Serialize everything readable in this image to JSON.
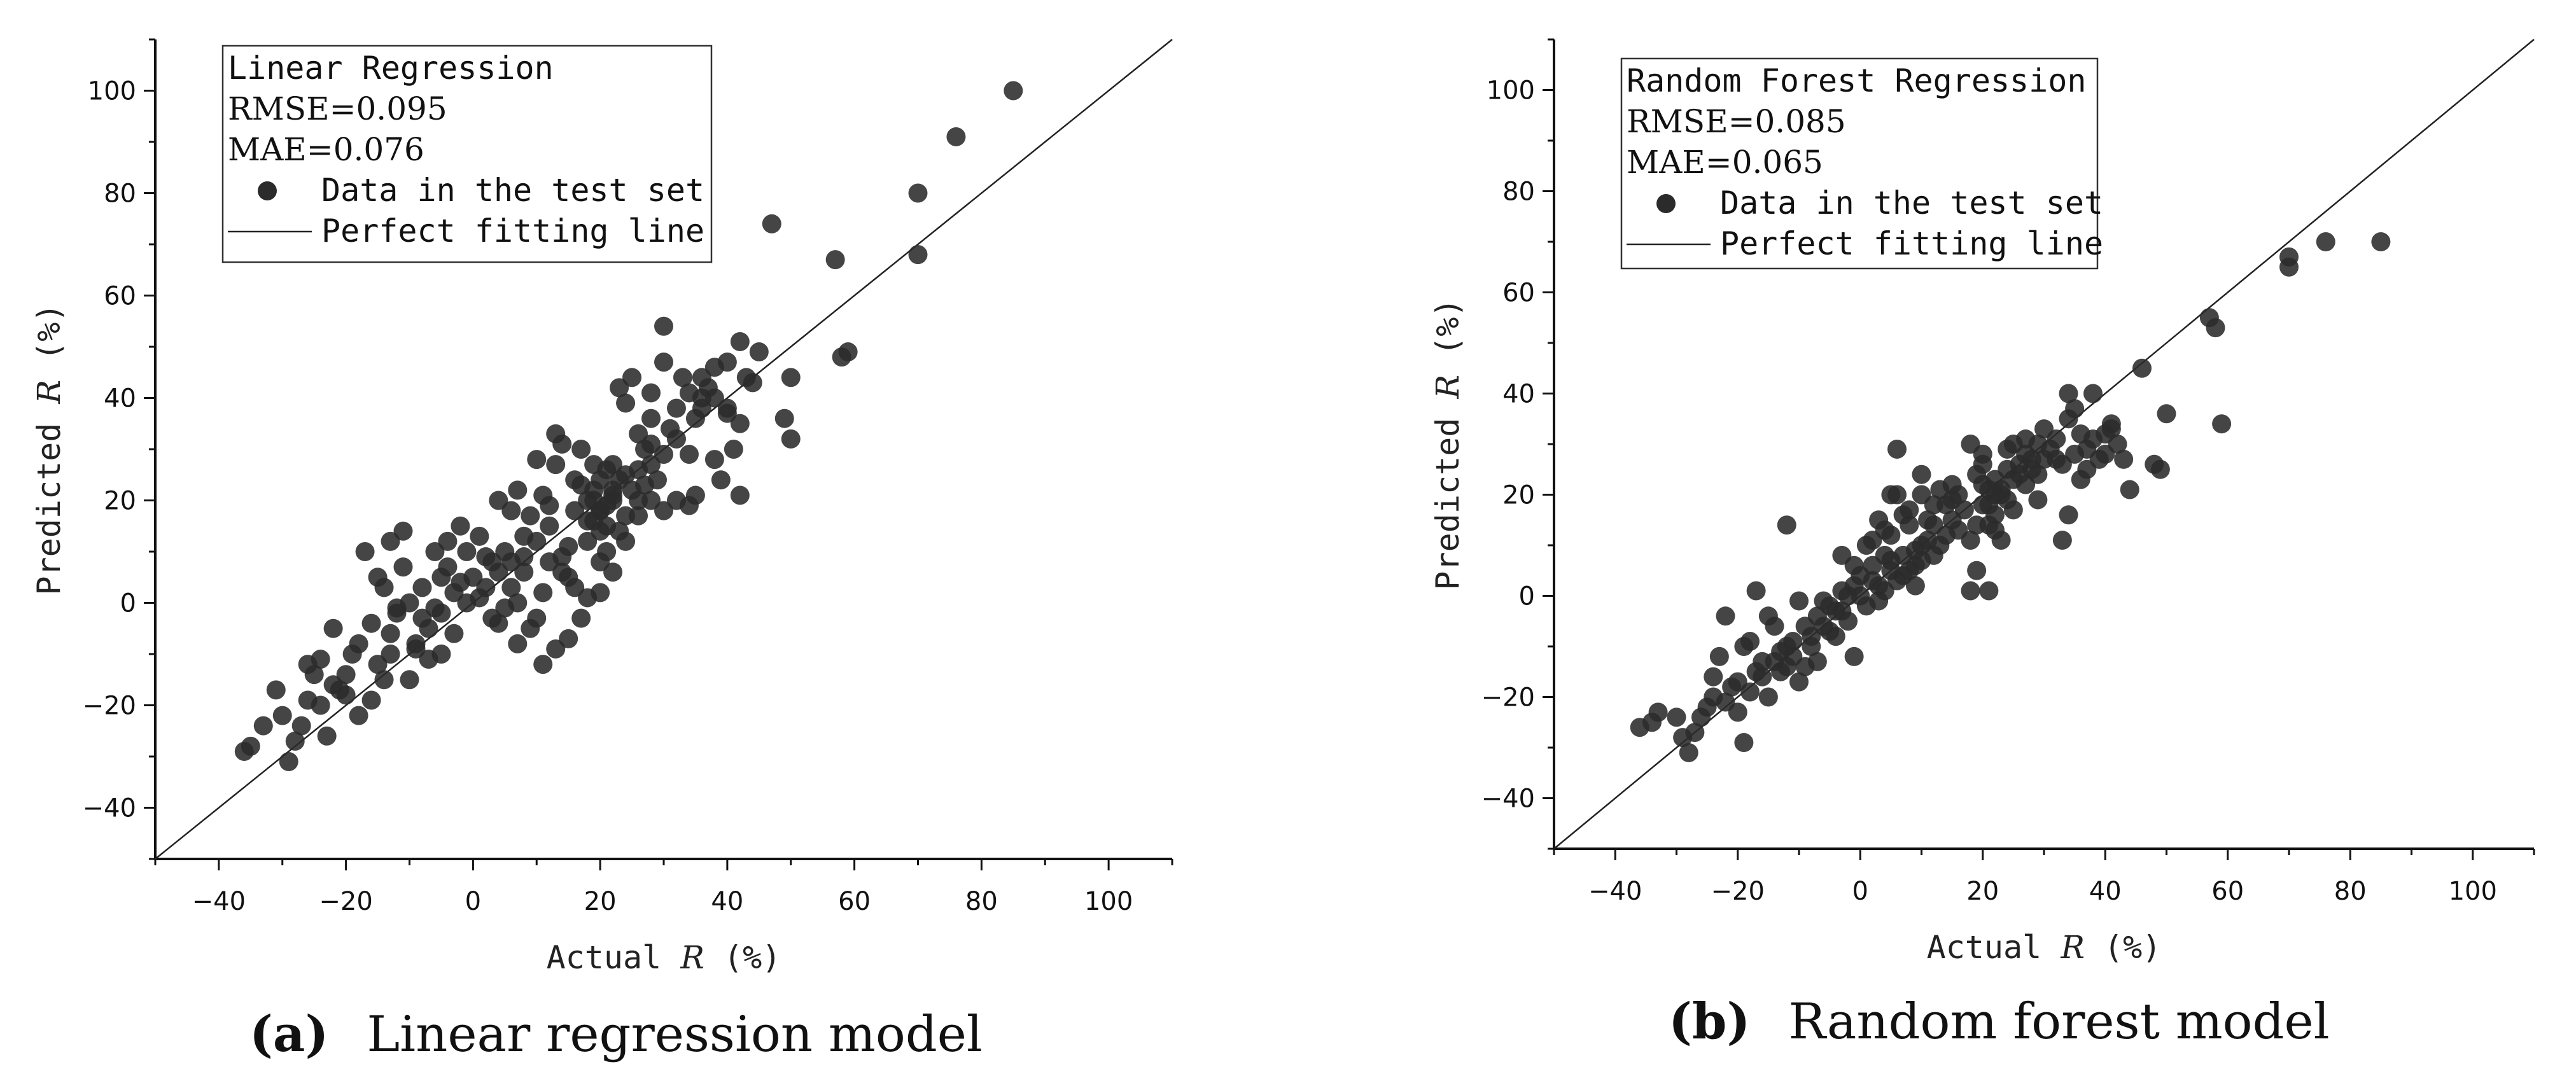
{
  "chart_data": [
    {
      "type": "scatter",
      "panel": "a",
      "caption_letter": "(a)",
      "caption_text": "Linear regression model",
      "xlabel_prefix": "Actual ",
      "xlabel_var": "R",
      "xlabel_suffix": " (%)",
      "ylabel_prefix": "Predicted ",
      "ylabel_var": "R",
      "ylabel_suffix": " (%)",
      "xlim": [
        -50,
        110
      ],
      "ylim": [
        -50,
        110
      ],
      "xticks": [
        -40,
        -20,
        0,
        20,
        40,
        60,
        80,
        100
      ],
      "yticks": [
        -40,
        -20,
        0,
        20,
        40,
        60,
        80,
        100
      ],
      "legend": {
        "title": "Linear Regression",
        "rmse": "RMSE=0.095",
        "mae": "MAE=0.076",
        "points_label": "Data in the test set",
        "line_label": "Perfect fitting line"
      },
      "line": [
        [
          -50,
          -50
        ],
        [
          110,
          110
        ]
      ],
      "points": [
        [
          85,
          100
        ],
        [
          76,
          91
        ],
        [
          70,
          80
        ],
        [
          70,
          68
        ],
        [
          57,
          67
        ],
        [
          47,
          74
        ],
        [
          58,
          48
        ],
        [
          59,
          49
        ],
        [
          50,
          44
        ],
        [
          50,
          32
        ],
        [
          49,
          36
        ],
        [
          45,
          49
        ],
        [
          42,
          51
        ],
        [
          40,
          47
        ],
        [
          44,
          43
        ],
        [
          42,
          21
        ],
        [
          38,
          28
        ],
        [
          40,
          38
        ],
        [
          36,
          40
        ],
        [
          33,
          44
        ],
        [
          30,
          54
        ],
        [
          30,
          47
        ],
        [
          28,
          41
        ],
        [
          28,
          36
        ],
        [
          25,
          44
        ],
        [
          24,
          39
        ],
        [
          23,
          42
        ],
        [
          26,
          33
        ],
        [
          27,
          30
        ],
        [
          22,
          27
        ],
        [
          24,
          25
        ],
        [
          28,
          20
        ],
        [
          32,
          20
        ],
        [
          35,
          21
        ],
        [
          34,
          19
        ],
        [
          30,
          18
        ],
        [
          26,
          17
        ],
        [
          22,
          20
        ],
        [
          20,
          18
        ],
        [
          20,
          14
        ],
        [
          18,
          12
        ],
        [
          19,
          22
        ],
        [
          16,
          24
        ],
        [
          14,
          31
        ],
        [
          17,
          30
        ],
        [
          13,
          27
        ],
        [
          12,
          15
        ],
        [
          10,
          12
        ],
        [
          8,
          13
        ],
        [
          6,
          18
        ],
        [
          5,
          10
        ],
        [
          4,
          20
        ],
        [
          3,
          8
        ],
        [
          2,
          3
        ],
        [
          0,
          5
        ],
        [
          -1,
          0
        ],
        [
          -3,
          2
        ],
        [
          -4,
          12
        ],
        [
          -5,
          5
        ],
        [
          -6,
          10
        ],
        [
          -8,
          -3
        ],
        [
          -9,
          -8
        ],
        [
          -10,
          -15
        ],
        [
          -12,
          -2
        ],
        [
          -13,
          -6
        ],
        [
          -15,
          -12
        ],
        [
          -16,
          -4
        ],
        [
          -18,
          -8
        ],
        [
          -19,
          -10
        ],
        [
          -20,
          -18
        ],
        [
          -22,
          -5
        ],
        [
          -24,
          -20
        ],
        [
          -25,
          -14
        ],
        [
          -27,
          -24
        ],
        [
          -28,
          -27
        ],
        [
          -29,
          -31
        ],
        [
          -30,
          -22
        ],
        [
          -33,
          -24
        ],
        [
          -35,
          -28
        ],
        [
          -36,
          -29
        ],
        [
          -17,
          10
        ],
        [
          -15,
          5
        ],
        [
          -14,
          3
        ],
        [
          -12,
          -1
        ],
        [
          -10,
          0
        ],
        [
          -9,
          -9
        ],
        [
          -7,
          -5
        ],
        [
          -5,
          -2
        ],
        [
          -3,
          -6
        ],
        [
          -2,
          4
        ],
        [
          1,
          1
        ],
        [
          3,
          -3
        ],
        [
          5,
          -1
        ],
        [
          6,
          3
        ],
        [
          7,
          0
        ],
        [
          8,
          6
        ],
        [
          9,
          -5
        ],
        [
          10,
          -3
        ],
        [
          11,
          2
        ],
        [
          13,
          -9
        ],
        [
          15,
          5
        ],
        [
          17,
          -3
        ],
        [
          20,
          8
        ],
        [
          21,
          10
        ],
        [
          22,
          6
        ],
        [
          23,
          14
        ],
        [
          24,
          12
        ],
        [
          25,
          22
        ],
        [
          26,
          20
        ],
        [
          27,
          23
        ],
        [
          28,
          27
        ],
        [
          29,
          24
        ],
        [
          31,
          34
        ],
        [
          32,
          32
        ],
        [
          34,
          29
        ],
        [
          35,
          36
        ],
        [
          36,
          38
        ],
        [
          37,
          42
        ],
        [
          38,
          40
        ],
        [
          39,
          24
        ],
        [
          41,
          30
        ],
        [
          43,
          44
        ],
        [
          20,
          24
        ],
        [
          21,
          26
        ],
        [
          19,
          20
        ],
        [
          18,
          16
        ],
        [
          16,
          18
        ],
        [
          15,
          11
        ],
        [
          14,
          9
        ],
        [
          12,
          19
        ],
        [
          11,
          21
        ],
        [
          9,
          17
        ],
        [
          7,
          22
        ],
        [
          6,
          8
        ],
        [
          4,
          6
        ],
        [
          2,
          9
        ],
        [
          1,
          13
        ],
        [
          -1,
          10
        ],
        [
          -2,
          15
        ],
        [
          -4,
          7
        ],
        [
          -6,
          -1
        ],
        [
          -8,
          3
        ],
        [
          -11,
          7
        ],
        [
          -13,
          -10
        ],
        [
          -14,
          -15
        ],
        [
          -16,
          -19
        ],
        [
          -18,
          -22
        ],
        [
          -21,
          -17
        ],
        [
          -23,
          -26
        ],
        [
          -26,
          -19
        ],
        [
          -31,
          -17
        ],
        [
          20,
          2
        ],
        [
          21,
          15
        ],
        [
          22,
          21
        ],
        [
          19,
          27
        ],
        [
          17,
          23
        ],
        [
          13,
          33
        ],
        [
          10,
          28
        ],
        [
          8,
          9
        ],
        [
          12,
          8
        ],
        [
          14,
          6
        ],
        [
          16,
          3
        ],
        [
          18,
          1
        ],
        [
          24,
          17
        ],
        [
          26,
          26
        ],
        [
          28,
          31
        ],
        [
          30,
          29
        ],
        [
          32,
          38
        ],
        [
          34,
          41
        ],
        [
          36,
          44
        ],
        [
          38,
          46
        ],
        [
          40,
          37
        ],
        [
          42,
          35
        ],
        [
          20,
          18
        ],
        [
          21,
          19
        ],
        [
          22,
          22
        ],
        [
          23,
          24
        ],
        [
          19,
          16
        ],
        [
          18,
          20
        ],
        [
          -20,
          -14
        ],
        [
          -22,
          -16
        ],
        [
          -24,
          -11
        ],
        [
          -26,
          -12
        ],
        [
          -11,
          14
        ],
        [
          -13,
          12
        ],
        [
          4,
          -4
        ],
        [
          7,
          -8
        ],
        [
          11,
          -12
        ],
        [
          15,
          -7
        ],
        [
          -5,
          -10
        ],
        [
          -7,
          -11
        ]
      ]
    },
    {
      "type": "scatter",
      "panel": "b",
      "caption_letter": "(b)",
      "caption_text": "Random forest model",
      "xlabel_prefix": "Actual ",
      "xlabel_var": "R",
      "xlabel_suffix": " (%)",
      "ylabel_prefix": "Predicted ",
      "ylabel_var": "R",
      "ylabel_suffix": " (%)",
      "xlim": [
        -50,
        110
      ],
      "ylim": [
        -50,
        110
      ],
      "xticks": [
        -40,
        -20,
        0,
        20,
        40,
        60,
        80,
        100
      ],
      "yticks": [
        -40,
        -20,
        0,
        20,
        40,
        60,
        80,
        100
      ],
      "legend": {
        "title": "Random Forest Regression",
        "rmse": "RMSE=0.085",
        "mae": "MAE=0.065",
        "points_label": "Data in the test set",
        "line_label": "Perfect fitting line"
      },
      "line": [
        [
          -50,
          -50
        ],
        [
          110,
          110
        ]
      ],
      "points": [
        [
          85,
          70
        ],
        [
          76,
          70
        ],
        [
          70,
          67
        ],
        [
          70,
          65
        ],
        [
          57,
          55
        ],
        [
          58,
          53
        ],
        [
          59,
          34
        ],
        [
          50,
          36
        ],
        [
          49,
          25
        ],
        [
          48,
          26
        ],
        [
          46,
          45
        ],
        [
          44,
          21
        ],
        [
          42,
          30
        ],
        [
          41,
          34
        ],
        [
          40,
          28
        ],
        [
          38,
          40
        ],
        [
          37,
          25
        ],
        [
          36,
          32
        ],
        [
          34,
          40
        ],
        [
          34,
          16
        ],
        [
          33,
          11
        ],
        [
          32,
          27
        ],
        [
          30,
          33
        ],
        [
          29,
          30
        ],
        [
          28,
          27
        ],
        [
          27,
          31
        ],
        [
          26,
          24
        ],
        [
          25,
          30
        ],
        [
          24,
          25
        ],
        [
          23,
          20
        ],
        [
          22,
          16
        ],
        [
          21,
          14
        ],
        [
          20,
          22
        ],
        [
          20,
          28
        ],
        [
          19,
          24
        ],
        [
          18,
          30
        ],
        [
          16,
          20
        ],
        [
          15,
          22
        ],
        [
          14,
          18
        ],
        [
          12,
          14
        ],
        [
          10,
          24
        ],
        [
          10,
          10
        ],
        [
          9,
          6
        ],
        [
          8,
          14
        ],
        [
          7,
          4
        ],
        [
          6,
          29
        ],
        [
          5,
          20
        ],
        [
          5,
          12
        ],
        [
          4,
          8
        ],
        [
          3,
          2
        ],
        [
          2,
          6
        ],
        [
          1,
          10
        ],
        [
          0,
          4
        ],
        [
          -1,
          2
        ],
        [
          -1,
          -12
        ],
        [
          -2,
          0
        ],
        [
          -3,
          -3
        ],
        [
          -4,
          -8
        ],
        [
          -5,
          -2
        ],
        [
          -6,
          -6
        ],
        [
          -7,
          -4
        ],
        [
          -8,
          -10
        ],
        [
          -9,
          -14
        ],
        [
          -10,
          -17
        ],
        [
          -11,
          -9
        ],
        [
          -12,
          14
        ],
        [
          -13,
          -11
        ],
        [
          -14,
          -6
        ],
        [
          -15,
          -20
        ],
        [
          -16,
          -13
        ],
        [
          -17,
          -15
        ],
        [
          -18,
          -9
        ],
        [
          -19,
          -29
        ],
        [
          -20,
          -23
        ],
        [
          -21,
          -18
        ],
        [
          -22,
          -4
        ],
        [
          -23,
          -12
        ],
        [
          -24,
          -16
        ],
        [
          -25,
          -22
        ],
        [
          -27,
          -27
        ],
        [
          -28,
          -31
        ],
        [
          -29,
          -28
        ],
        [
          -30,
          -24
        ],
        [
          -33,
          -23
        ],
        [
          -34,
          -25
        ],
        [
          -36,
          -26
        ],
        [
          21,
          18
        ],
        [
          22,
          20
        ],
        [
          23,
          21
        ],
        [
          24,
          19
        ],
        [
          25,
          23
        ],
        [
          26,
          26
        ],
        [
          27,
          28
        ],
        [
          28,
          25
        ],
        [
          29,
          24
        ],
        [
          30,
          27
        ],
        [
          31,
          29
        ],
        [
          32,
          31
        ],
        [
          33,
          26
        ],
        [
          35,
          28
        ],
        [
          36,
          23
        ],
        [
          37,
          29
        ],
        [
          38,
          31
        ],
        [
          39,
          27
        ],
        [
          40,
          32
        ],
        [
          19,
          14
        ],
        [
          18,
          11
        ],
        [
          17,
          17
        ],
        [
          16,
          13
        ],
        [
          15,
          15
        ],
        [
          14,
          12
        ],
        [
          13,
          10
        ],
        [
          12,
          8
        ],
        [
          11,
          11
        ],
        [
          10,
          7
        ],
        [
          9,
          9
        ],
        [
          8,
          5
        ],
        [
          7,
          8
        ],
        [
          6,
          3
        ],
        [
          5,
          5
        ],
        [
          4,
          1
        ],
        [
          3,
          -1
        ],
        [
          2,
          3
        ],
        [
          1,
          -2
        ],
        [
          0,
          0
        ],
        [
          -2,
          -5
        ],
        [
          -3,
          1
        ],
        [
          -4,
          -3
        ],
        [
          -5,
          -7
        ],
        [
          -6,
          -1
        ],
        [
          -8,
          -8
        ],
        [
          -9,
          -6
        ],
        [
          -11,
          -12
        ],
        [
          -12,
          -10
        ],
        [
          -13,
          -15
        ],
        [
          -14,
          -13
        ],
        [
          -16,
          -16
        ],
        [
          -18,
          -19
        ],
        [
          -20,
          -17
        ],
        [
          -22,
          -21
        ],
        [
          -24,
          -20
        ],
        [
          -26,
          -24
        ],
        [
          20,
          18
        ],
        [
          21,
          21
        ],
        [
          22,
          23
        ],
        [
          20,
          26
        ],
        [
          22,
          13
        ],
        [
          23,
          11
        ],
        [
          24,
          29
        ],
        [
          25,
          17
        ],
        [
          27,
          22
        ],
        [
          29,
          19
        ],
        [
          34,
          35
        ],
        [
          35,
          37
        ],
        [
          41,
          33
        ],
        [
          43,
          27
        ],
        [
          19,
          5
        ],
        [
          18,
          1
        ],
        [
          21,
          1
        ],
        [
          6,
          20
        ],
        [
          7,
          16
        ],
        [
          9,
          2
        ],
        [
          11,
          15
        ],
        [
          13,
          21
        ],
        [
          15,
          19
        ],
        [
          -1,
          6
        ],
        [
          -3,
          8
        ],
        [
          -7,
          -13
        ],
        [
          -10,
          -1
        ],
        [
          -12,
          -14
        ],
        [
          -15,
          -4
        ],
        [
          -17,
          1
        ],
        [
          -19,
          -10
        ],
        [
          3,
          15
        ],
        [
          5,
          7
        ],
        [
          8,
          17
        ],
        [
          10,
          20
        ],
        [
          12,
          18
        ],
        [
          2,
          11
        ],
        [
          4,
          13
        ]
      ]
    }
  ]
}
